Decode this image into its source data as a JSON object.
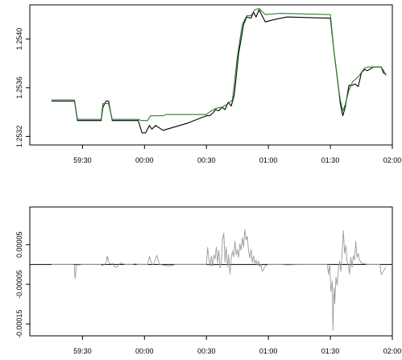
{
  "colors": {
    "series_black": "#000000",
    "series_green": "#2e7d32",
    "series_diff": "#9a9a9a",
    "zero_line": "#000000",
    "frame": "#000000"
  },
  "chart_data": [
    {
      "type": "line",
      "title": "",
      "xlabel": "",
      "ylabel": "",
      "x_tick_labels": [
        "59:30",
        "00:00",
        "00:30",
        "01:00",
        "01:30",
        "02:00"
      ],
      "x_tick_values": [
        1,
        2,
        3,
        4,
        5,
        6
      ],
      "y_tick_labels": [
        "1.2532",
        "1.2536",
        "1.2540"
      ],
      "y_tick_values": [
        1.2532,
        1.2536,
        1.254
      ],
      "xlim": [
        0.15,
        6.0
      ],
      "ylim": [
        1.25313,
        1.25428
      ],
      "series": [
        {
          "color": "black",
          "points": [
            [
              0.5,
              1.25349
            ],
            [
              0.87,
              1.25349
            ],
            [
              0.92,
              1.25333
            ],
            [
              1.3,
              1.25333
            ],
            [
              1.33,
              1.25344
            ],
            [
              1.38,
              1.25349
            ],
            [
              1.42,
              1.25349
            ],
            [
              1.48,
              1.25333
            ],
            [
              1.9,
              1.25333
            ],
            [
              1.96,
              1.25323
            ],
            [
              2.02,
              1.25323
            ],
            [
              2.08,
              1.25329
            ],
            [
              2.12,
              1.25326
            ],
            [
              2.18,
              1.25329
            ],
            [
              2.3,
              1.25325
            ],
            [
              2.7,
              1.25331
            ],
            [
              3.0,
              1.25337
            ],
            [
              3.05,
              1.25337
            ],
            [
              3.1,
              1.25339
            ],
            [
              3.15,
              1.25342
            ],
            [
              3.2,
              1.25341
            ],
            [
              3.25,
              1.25344
            ],
            [
              3.3,
              1.25342
            ],
            [
              3.35,
              1.25348
            ],
            [
              3.4,
              1.25345
            ],
            [
              3.45,
              1.25354
            ],
            [
              3.52,
              1.25388
            ],
            [
              3.6,
              1.25412
            ],
            [
              3.65,
              1.25418
            ],
            [
              3.72,
              1.25417
            ],
            [
              3.76,
              1.25422
            ],
            [
              3.8,
              1.25418
            ],
            [
              3.85,
              1.25424
            ],
            [
              3.95,
              1.25414
            ],
            [
              4.1,
              1.25416
            ],
            [
              4.3,
              1.25418
            ],
            [
              5.0,
              1.25417
            ],
            [
              5.06,
              1.25389
            ],
            [
              5.12,
              1.25365
            ],
            [
              5.16,
              1.25347
            ],
            [
              5.2,
              1.25337
            ],
            [
              5.24,
              1.25344
            ],
            [
              5.3,
              1.25362
            ],
            [
              5.35,
              1.25362
            ],
            [
              5.4,
              1.25363
            ],
            [
              5.45,
              1.25361
            ],
            [
              5.5,
              1.25372
            ],
            [
              5.55,
              1.25375
            ],
            [
              5.6,
              1.25374
            ],
            [
              5.7,
              1.25377
            ],
            [
              5.82,
              1.25377
            ],
            [
              5.86,
              1.25372
            ],
            [
              5.9,
              1.25371
            ]
          ]
        },
        {
          "color": "green",
          "points": [
            [
              0.5,
              1.2535
            ],
            [
              0.87,
              1.2535
            ],
            [
              0.92,
              1.25334
            ],
            [
              1.3,
              1.25334
            ],
            [
              1.33,
              1.25347
            ],
            [
              1.42,
              1.25347
            ],
            [
              1.48,
              1.25334
            ],
            [
              1.9,
              1.25334
            ],
            [
              1.95,
              1.25333
            ],
            [
              2.05,
              1.25333
            ],
            [
              2.1,
              1.25337
            ],
            [
              2.3,
              1.25337
            ],
            [
              2.35,
              1.25338
            ],
            [
              3.0,
              1.25338
            ],
            [
              3.05,
              1.2534
            ],
            [
              3.15,
              1.25343
            ],
            [
              3.25,
              1.25344
            ],
            [
              3.35,
              1.25347
            ],
            [
              3.42,
              1.2535
            ],
            [
              3.5,
              1.25386
            ],
            [
              3.58,
              1.25412
            ],
            [
              3.65,
              1.25419
            ],
            [
              3.72,
              1.25419
            ],
            [
              3.78,
              1.25424
            ],
            [
              3.85,
              1.25425
            ],
            [
              3.95,
              1.2542
            ],
            [
              4.2,
              1.25421
            ],
            [
              5.0,
              1.2542
            ],
            [
              5.06,
              1.25389
            ],
            [
              5.12,
              1.25364
            ],
            [
              5.16,
              1.2535
            ],
            [
              5.2,
              1.25341
            ],
            [
              5.24,
              1.25346
            ],
            [
              5.3,
              1.25358
            ],
            [
              5.36,
              1.25365
            ],
            [
              5.45,
              1.25369
            ],
            [
              5.55,
              1.25376
            ],
            [
              5.6,
              1.25377
            ],
            [
              5.82,
              1.25377
            ],
            [
              5.86,
              1.25374
            ],
            [
              5.9,
              1.2537
            ]
          ]
        }
      ]
    },
    {
      "type": "line",
      "title": "",
      "xlabel": "",
      "ylabel": "",
      "x_tick_labels": [
        "59:30",
        "00:00",
        "00:30",
        "01:00",
        "01:30",
        "02:00"
      ],
      "x_tick_values": [
        1,
        2,
        3,
        4,
        5,
        6
      ],
      "y_tick_labels": [
        "0.00005",
        "-0.00005",
        "-0.00015"
      ],
      "y_tick_values": [
        5e-05,
        -5e-05,
        -0.00015
      ],
      "xlim": [
        0.15,
        6.0
      ],
      "ylim": [
        -0.00018,
        0.000145
      ],
      "zero_line": true,
      "series": [
        {
          "color": "grey",
          "points": [
            [
              0.5,
              0
            ],
            [
              0.86,
              0
            ],
            [
              0.87,
              -8e-06
            ],
            [
              0.88,
              -3.6e-05
            ],
            [
              0.9,
              -1e-06
            ],
            [
              0.95,
              -1e-06
            ],
            [
              1.0,
              0
            ],
            [
              1.3,
              0
            ],
            [
              1.32,
              -3e-06
            ],
            [
              1.34,
              -1e-06
            ],
            [
              1.36,
              1e-06
            ],
            [
              1.38,
              5e-06
            ],
            [
              1.395,
              1.8e-05
            ],
            [
              1.405,
              2.1e-05
            ],
            [
              1.41,
              1.2e-05
            ],
            [
              1.415,
              1.5e-05
            ],
            [
              1.42,
              8e-06
            ],
            [
              1.43,
              4e-06
            ],
            [
              1.45,
              2e-06
            ],
            [
              1.47,
              1e-06
            ],
            [
              1.49,
              3e-06
            ],
            [
              1.52,
              -7e-06
            ],
            [
              1.56,
              -6e-06
            ],
            [
              1.6,
              2e-06
            ],
            [
              1.63,
              4e-06
            ],
            [
              1.65,
              2e-06
            ],
            [
              1.7,
              0
            ],
            [
              1.8,
              0
            ],
            [
              1.85,
              2e-06
            ],
            [
              1.9,
              0
            ],
            [
              2.0,
              0
            ],
            [
              2.05,
              0
            ],
            [
              2.08,
              2e-05
            ],
            [
              2.12,
              1e-06
            ],
            [
              2.15,
              1e-06
            ],
            [
              2.2,
              2.3e-05
            ],
            [
              2.24,
              0
            ],
            [
              2.4,
              -4e-06
            ],
            [
              2.5,
              0
            ],
            [
              3.0,
              0
            ],
            [
              3.02,
              4.3e-05
            ],
            [
              3.04,
              1.3e-05
            ],
            [
              3.06,
              -5e-06
            ],
            [
              3.08,
              2.1e-05
            ],
            [
              3.1,
              -5e-06
            ],
            [
              3.12,
              2.4e-05
            ],
            [
              3.14,
              1.4e-05
            ],
            [
              3.16,
              4.4e-05
            ],
            [
              3.18,
              4e-06
            ],
            [
              3.2,
              3.6e-05
            ],
            [
              3.22,
              -9e-06
            ],
            [
              3.24,
              4e-06
            ],
            [
              3.26,
              6.3e-05
            ],
            [
              3.28,
              7.9e-05
            ],
            [
              3.3,
              6e-06
            ],
            [
              3.32,
              4.4e-05
            ],
            [
              3.34,
              -6e-06
            ],
            [
              3.36,
              2.4e-05
            ],
            [
              3.38,
              -2.4e-05
            ],
            [
              3.4,
              1.4e-05
            ],
            [
              3.42,
              3.4e-05
            ],
            [
              3.44,
              1.9e-05
            ],
            [
              3.46,
              5.9e-05
            ],
            [
              3.48,
              2.4e-05
            ],
            [
              3.5,
              3.8e-05
            ],
            [
              3.52,
              1.8e-05
            ],
            [
              3.54,
              5.2e-05
            ],
            [
              3.56,
              3.6e-05
            ],
            [
              3.58,
              6.8e-05
            ],
            [
              3.6,
              4.4e-05
            ],
            [
              3.62,
              8.8e-05
            ],
            [
              3.64,
              6.2e-05
            ],
            [
              3.66,
              7.1e-05
            ],
            [
              3.68,
              3.4e-05
            ],
            [
              3.7,
              1.6e-05
            ],
            [
              3.72,
              3.8e-05
            ],
            [
              3.74,
              5e-06
            ],
            [
              3.76,
              2.2e-05
            ],
            [
              3.78,
              2e-06
            ],
            [
              3.8,
              1.2e-05
            ],
            [
              3.82,
              -2e-06
            ],
            [
              3.84,
              9e-06
            ],
            [
              3.86,
              -6e-06
            ],
            [
              3.88,
              1e-06
            ],
            [
              3.9,
              -1.8e-05
            ],
            [
              3.95,
              -4e-06
            ],
            [
              4.0,
              0
            ],
            [
              4.2,
              0
            ],
            [
              4.3,
              -1e-06
            ],
            [
              4.5,
              0
            ],
            [
              4.95,
              0
            ],
            [
              4.97,
              -2.5e-05
            ],
            [
              4.99,
              2e-06
            ],
            [
              5.01,
              -6.8e-05
            ],
            [
              5.03,
              -4.2e-05
            ],
            [
              5.04,
              -0.000166
            ],
            [
              5.06,
              -5.8e-05
            ],
            [
              5.07,
              -9.8e-05
            ],
            [
              5.09,
              -3.2e-05
            ],
            [
              5.11,
              -5.2e-05
            ],
            [
              5.13,
              -1.2e-05
            ],
            [
              5.15,
              8e-06
            ],
            [
              5.17,
              -1.8e-05
            ],
            [
              5.19,
              2.8e-05
            ],
            [
              5.21,
              8.5e-05
            ],
            [
              5.23,
              2.8e-05
            ],
            [
              5.25,
              4.8e-05
            ],
            [
              5.27,
              8e-06
            ],
            [
              5.29,
              -2e-06
            ],
            [
              5.31,
              -2.4e-05
            ],
            [
              5.33,
              1.8e-05
            ],
            [
              5.35,
              -8e-06
            ],
            [
              5.37,
              2.2e-05
            ],
            [
              5.39,
              1.2e-05
            ],
            [
              5.41,
              5.8e-05
            ],
            [
              5.43,
              1.8e-05
            ],
            [
              5.45,
              2.8e-05
            ],
            [
              5.47,
              1.2e-05
            ],
            [
              5.5,
              4e-06
            ],
            [
              5.55,
              2e-06
            ],
            [
              5.6,
              0
            ],
            [
              5.7,
              0
            ],
            [
              5.8,
              0
            ],
            [
              5.82,
              -2.6e-05
            ],
            [
              5.86,
              -1.6e-05
            ],
            [
              5.9,
              -6e-06
            ]
          ]
        }
      ]
    }
  ]
}
